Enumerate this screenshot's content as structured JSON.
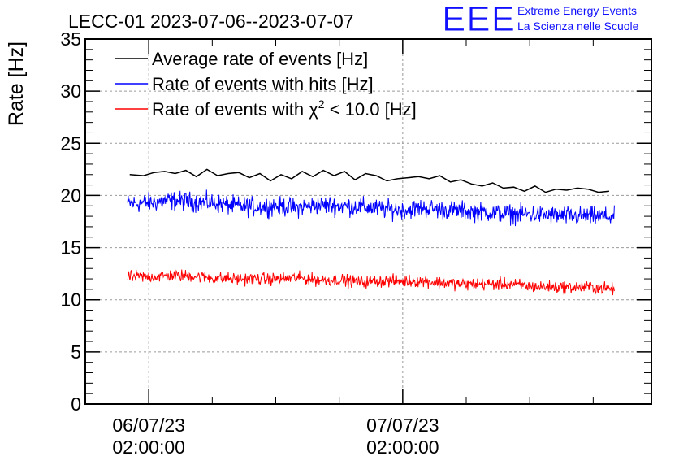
{
  "logo": {
    "mark": "EEE",
    "line1": "Extreme Energy Events",
    "line2": "La Scienza nelle Scuole"
  },
  "chart_data": {
    "type": "line",
    "title": "LECC-01 2023-07-06--2023-07-07",
    "ylabel": "Rate [Hz]",
    "xlabel": "",
    "ylim": [
      0,
      35
    ],
    "yticks": [
      "0",
      "5",
      "10",
      "15",
      "20",
      "25",
      "30",
      "35"
    ],
    "xticks": [
      {
        "date": "06/07/23",
        "time": "02:00:00",
        "hours": 0
      },
      {
        "date": "07/07/23",
        "time": "02:00:00",
        "hours": 24
      }
    ],
    "xlim_hours": [
      -6,
      47.5
    ],
    "grid": true,
    "legend_position": "top-left",
    "series": [
      {
        "name": "Average rate of events [Hz]",
        "color": "#000000",
        "kind": "smooth",
        "x_hours": [
          -1.8,
          -0.5,
          0.5,
          1.5,
          2.5,
          3.5,
          4.5,
          5.5,
          6.5,
          7.5,
          8.5,
          9.5,
          10.5,
          11.5,
          12.5,
          13.5,
          14.5,
          15.5,
          16.5,
          17.5,
          18.5,
          19.5,
          20.5,
          21.5,
          22.5,
          23.5,
          24.5,
          25.5,
          26.5,
          27.5,
          28.5,
          29.5,
          30.5,
          31.5,
          32.5,
          33.5,
          34.5,
          35.5,
          36.5,
          37.5,
          38.5,
          39.5,
          40.5,
          41.5,
          42.5,
          43.5
        ],
        "values": [
          22.0,
          21.9,
          22.2,
          22.3,
          22.1,
          22.4,
          21.8,
          22.5,
          21.9,
          22.1,
          22.2,
          21.7,
          22.1,
          21.4,
          22.0,
          21.6,
          22.3,
          21.8,
          22.4,
          21.9,
          22.3,
          21.5,
          22.1,
          21.9,
          21.4,
          21.6,
          21.7,
          21.8,
          21.6,
          21.9,
          21.3,
          21.5,
          21.1,
          20.9,
          21.2,
          20.7,
          20.8,
          20.4,
          20.9,
          20.3,
          20.6,
          20.5,
          20.7,
          20.6,
          20.3,
          20.4
        ]
      },
      {
        "name": "Rate of events with hits [Hz]",
        "color": "#0000ff",
        "kind": "noisy",
        "x_hours": [
          -2,
          0,
          2,
          4,
          6,
          8,
          10,
          12,
          14,
          16,
          18,
          20,
          22,
          24,
          26,
          28,
          30,
          32,
          34,
          36,
          38,
          40,
          42,
          44
        ],
        "values": [
          19.2,
          19.3,
          19.5,
          19.4,
          19.3,
          19.0,
          18.9,
          19.0,
          18.8,
          19.1,
          19.0,
          18.9,
          18.7,
          18.6,
          18.8,
          18.6,
          18.5,
          18.4,
          18.2,
          18.2,
          18.1,
          18.0,
          18.0,
          17.9
        ],
        "spread": 0.7
      },
      {
        "name": "Rate of events with χ² < 10.0 [Hz]",
        "color": "#ff0000",
        "kind": "noisy",
        "x_hours": [
          -2,
          0,
          2,
          4,
          6,
          8,
          10,
          12,
          14,
          16,
          18,
          20,
          22,
          24,
          26,
          28,
          30,
          32,
          34,
          36,
          38,
          40,
          42,
          44
        ],
        "values": [
          12.2,
          12.2,
          12.3,
          12.3,
          12.1,
          12.0,
          12.0,
          12.0,
          12.1,
          11.9,
          11.9,
          11.7,
          11.8,
          11.8,
          11.8,
          11.6,
          11.5,
          11.5,
          11.5,
          11.3,
          11.2,
          11.2,
          11.2,
          11.0
        ],
        "spread": 0.45
      }
    ],
    "legend_labels": {
      "avg": "Average rate of events [Hz]",
      "hits": "Rate of events with hits [Hz]",
      "chi_prefix": "Rate of events with ",
      "chi_symbol": "χ",
      "chi_exp": "2",
      "chi_suffix": " < 10.0 [Hz]"
    }
  }
}
